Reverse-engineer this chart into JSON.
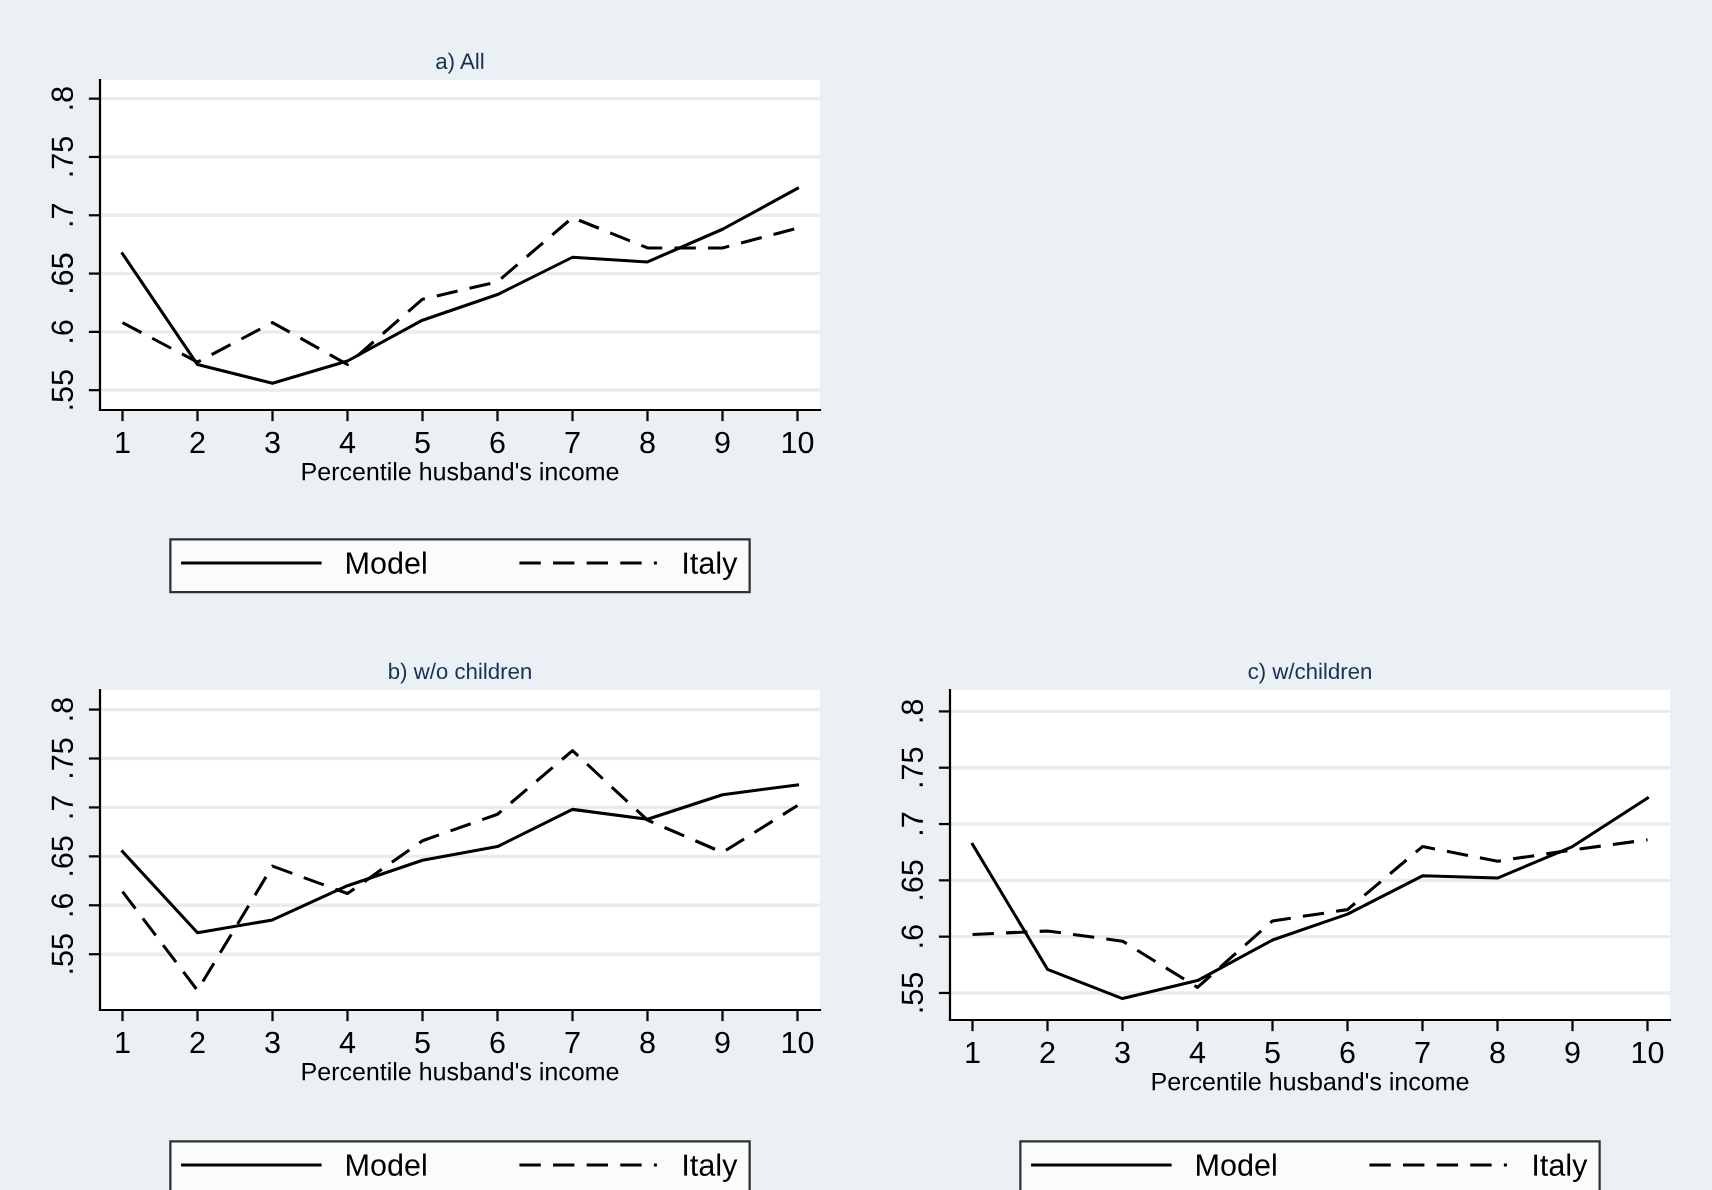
{
  "chart_data": [
    {
      "type": "line",
      "title": "a) All",
      "xlabel": "Percentile husband's income",
      "x": [
        1,
        2,
        3,
        4,
        5,
        6,
        7,
        8,
        9,
        10
      ],
      "xlim": [
        0.7,
        10.3
      ],
      "xticks": [
        1,
        2,
        3,
        4,
        5,
        6,
        7,
        8,
        9,
        10
      ],
      "ylim": [
        0.533,
        0.816
      ],
      "yticks": [
        {
          "value": 0.55,
          "label": ".55"
        },
        {
          "value": 0.6,
          "label": ".6"
        },
        {
          "value": 0.65,
          "label": ".65"
        },
        {
          "value": 0.7,
          "label": ".7"
        },
        {
          "value": 0.75,
          "label": ".75"
        },
        {
          "value": 0.8,
          "label": ".8"
        }
      ],
      "grid": "y",
      "legend": "bottom",
      "marker": "none",
      "series": [
        {
          "name": "Model",
          "color": "#000000",
          "line_style": "solid",
          "values": [
            0.667,
            0.572,
            0.556,
            0.575,
            0.61,
            0.632,
            0.664,
            0.66,
            0.688,
            0.723
          ]
        },
        {
          "name": "Italy",
          "color": "#000000",
          "line_style": "dashed",
          "values": [
            0.608,
            0.574,
            0.608,
            0.572,
            0.628,
            0.643,
            0.698,
            0.672,
            0.672,
            0.689
          ]
        }
      ]
    },
    {
      "type": "line",
      "title": "b) w/o children",
      "xlabel": "Percentile husband's income",
      "x": [
        1,
        2,
        3,
        4,
        5,
        6,
        7,
        8,
        9,
        10
      ],
      "xlim": [
        0.7,
        10.3
      ],
      "xticks": [
        1,
        2,
        3,
        4,
        5,
        6,
        7,
        8,
        9,
        10
      ],
      "ylim": [
        0.493,
        0.82
      ],
      "yticks": [
        {
          "value": 0.55,
          "label": ".55"
        },
        {
          "value": 0.6,
          "label": ".6"
        },
        {
          "value": 0.65,
          "label": ".65"
        },
        {
          "value": 0.7,
          "label": ".7"
        },
        {
          "value": 0.75,
          "label": ".75"
        },
        {
          "value": 0.8,
          "label": ".8"
        }
      ],
      "grid": "y",
      "legend": "bottom",
      "marker": "none",
      "series": [
        {
          "name": "Model",
          "color": "#000000",
          "line_style": "solid",
          "values": [
            0.655,
            0.572,
            0.585,
            0.62,
            0.646,
            0.66,
            0.698,
            0.688,
            0.713,
            0.723
          ]
        },
        {
          "name": "Italy",
          "color": "#000000",
          "line_style": "dashed",
          "values": [
            0.614,
            0.513,
            0.64,
            0.612,
            0.666,
            0.693,
            0.758,
            0.687,
            0.654,
            0.702
          ]
        }
      ]
    },
    {
      "type": "line",
      "title": "c) w/children",
      "xlabel": "Percentile husband's income",
      "x": [
        1,
        2,
        3,
        4,
        5,
        6,
        7,
        8,
        9,
        10
      ],
      "xlim": [
        0.7,
        10.3
      ],
      "xticks": [
        1,
        2,
        3,
        4,
        5,
        6,
        7,
        8,
        9,
        10
      ],
      "ylim": [
        0.526,
        0.819
      ],
      "yticks": [
        {
          "value": 0.55,
          "label": ".55"
        },
        {
          "value": 0.6,
          "label": ".6"
        },
        {
          "value": 0.65,
          "label": ".65"
        },
        {
          "value": 0.7,
          "label": ".7"
        },
        {
          "value": 0.75,
          "label": ".75"
        },
        {
          "value": 0.8,
          "label": ".8"
        }
      ],
      "grid": "y",
      "legend": "bottom",
      "marker": "none",
      "series": [
        {
          "name": "Model",
          "color": "#000000",
          "line_style": "solid",
          "values": [
            0.682,
            0.571,
            0.545,
            0.561,
            0.597,
            0.62,
            0.654,
            0.652,
            0.68,
            0.723
          ]
        },
        {
          "name": "Italy",
          "color": "#000000",
          "line_style": "dashed",
          "values": [
            0.602,
            0.605,
            0.596,
            0.555,
            0.614,
            0.624,
            0.68,
            0.667,
            0.677,
            0.686
          ]
        }
      ]
    }
  ]
}
